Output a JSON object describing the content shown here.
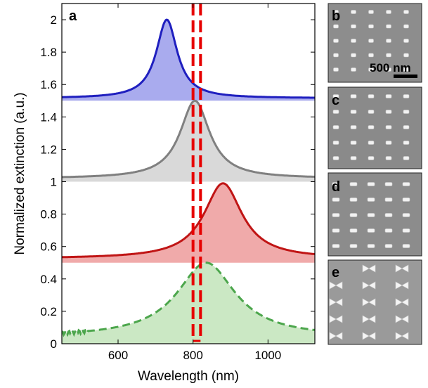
{
  "chart_data": {
    "type": "line",
    "panel_label": "a",
    "xlabel": "Wavelength (nm)",
    "ylabel": "Normalized extinction (a.u.)",
    "xlim": [
      450,
      1125
    ],
    "ylim": [
      0,
      2.1
    ],
    "x_ticks": [
      600,
      800,
      1000
    ],
    "y_ticks": [
      0,
      0.2,
      0.4,
      0.6,
      0.8,
      1,
      1.2,
      1.4,
      1.6,
      1.8,
      2
    ],
    "y_tick_labels": [
      "0",
      "0.2",
      "0.4",
      "0.6",
      "0.8",
      "1",
      "1.2",
      "1.4",
      "1.6",
      "1.8",
      "2"
    ],
    "series": [
      {
        "name": "b",
        "baseline": 1.5,
        "peak_nm": 730,
        "peak_value": 2.0,
        "width_nm": 34,
        "offset": 0.015,
        "color": "#1f1fbf",
        "fill": "#a9abee",
        "style": "solid"
      },
      {
        "name": "c",
        "baseline": 1.0,
        "peak_nm": 805,
        "peak_value": 1.5,
        "width_nm": 48,
        "offset": 0.02,
        "color": "#808080",
        "fill": "#d9d9d9",
        "style": "solid"
      },
      {
        "name": "d",
        "baseline": 0.5,
        "peak_nm": 880,
        "peak_value": 0.99,
        "width_nm": 62,
        "offset": 0.025,
        "color": "#c01515",
        "fill": "#f0aaaa",
        "style": "solid"
      },
      {
        "name": "e",
        "baseline": 0.0,
        "peak_nm": 835,
        "peak_value": 0.5,
        "width_nm": 95,
        "offset": 0.04,
        "color": "#4ca64c",
        "fill": "#cbe8c4",
        "style": "dashed"
      }
    ],
    "markers": {
      "vertical_dashed_lines_nm": [
        800,
        820
      ],
      "color": "#e60000"
    },
    "sem_panels": [
      {
        "label": "b",
        "scale_bar": "500 nm",
        "pattern": "rods-small"
      },
      {
        "label": "c",
        "scale_bar": "",
        "pattern": "rods-medium"
      },
      {
        "label": "d",
        "scale_bar": "",
        "pattern": "rods-long"
      },
      {
        "label": "e",
        "scale_bar": "",
        "pattern": "bowties"
      }
    ]
  }
}
